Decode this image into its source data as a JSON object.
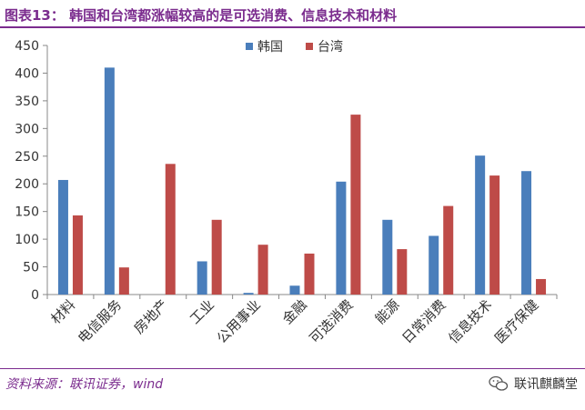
{
  "header": {
    "title": "图表13：   韩国和台湾都涨幅较高的是可选消费、信息技术和材料",
    "accent": "#7b2c8e"
  },
  "footer": {
    "source": "资料来源：联讯证券，wind",
    "brand": "联讯麒麟堂",
    "brand_icon": "wechat-icon"
  },
  "chart_data": {
    "type": "bar",
    "categories": [
      "材料",
      "电信服务",
      "房地产",
      "工业",
      "公用事业",
      "金融",
      "可选消费",
      "能源",
      "日常消费",
      "信息技术",
      "医疗保健"
    ],
    "series": [
      {
        "name": "韩国",
        "color": "#4a7ebb",
        "values": [
          207,
          410,
          0,
          60,
          3,
          16,
          204,
          135,
          106,
          251,
          223
        ]
      },
      {
        "name": "台湾",
        "color": "#be4b48",
        "values": [
          143,
          49,
          236,
          135,
          90,
          74,
          325,
          82,
          160,
          215,
          28
        ]
      }
    ],
    "ylim": [
      0,
      450
    ],
    "yticks": [
      0,
      50,
      100,
      150,
      200,
      250,
      300,
      350,
      400,
      450
    ],
    "grid": false,
    "legend": "top"
  }
}
